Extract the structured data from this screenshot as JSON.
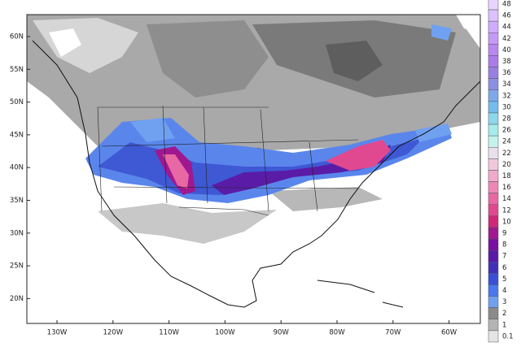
{
  "map": {
    "lat_labels": [
      "60N",
      "55N",
      "50N",
      "45N",
      "40N",
      "35N",
      "30N",
      "25N",
      "20N"
    ],
    "lon_labels": [
      "130W",
      "120W",
      "110W",
      "100W",
      "90W",
      "80W",
      "70W",
      "60W"
    ],
    "colorbar": [
      {
        "value": 48,
        "color": "#e8d4ff"
      },
      {
        "value": 46,
        "color": "#dcc0ff"
      },
      {
        "value": 44,
        "color": "#d0acff"
      },
      {
        "value": 42,
        "color": "#c49af8"
      },
      {
        "value": 40,
        "color": "#b888f0"
      },
      {
        "value": 38,
        "color": "#ac7ce8"
      },
      {
        "value": 36,
        "color": "#9a7ee0"
      },
      {
        "value": 34,
        "color": "#8c90e0"
      },
      {
        "value": 32,
        "color": "#7ea8e8"
      },
      {
        "value": 30,
        "color": "#74bcec"
      },
      {
        "value": 28,
        "color": "#8cd8ec"
      },
      {
        "value": 26,
        "color": "#a6ecec"
      },
      {
        "value": 24,
        "color": "#c4f2ec"
      },
      {
        "value": 22,
        "color": "#e8e0ec"
      },
      {
        "value": 20,
        "color": "#f0c8dc"
      },
      {
        "value": 18,
        "color": "#f0aacc"
      },
      {
        "value": 16,
        "color": "#ec88b8"
      },
      {
        "value": 14,
        "color": "#e868a4"
      },
      {
        "value": 12,
        "color": "#e04890"
      },
      {
        "value": 10,
        "color": "#d02878"
      },
      {
        "value": 9,
        "color": "#a01890"
      },
      {
        "value": 8,
        "color": "#7810a0"
      },
      {
        "value": 7,
        "color": "#5818a8"
      },
      {
        "value": 6,
        "color": "#4030b8"
      },
      {
        "value": 5,
        "color": "#3850d8"
      },
      {
        "value": 4,
        "color": "#4878f0"
      },
      {
        "value": 3,
        "color": "#70a0f0"
      },
      {
        "value": 2,
        "color": "#8a8a8a"
      },
      {
        "value": 1,
        "color": "#b4b4b4"
      },
      {
        "value": 0.1,
        "color": "#e4e4e4"
      }
    ]
  }
}
